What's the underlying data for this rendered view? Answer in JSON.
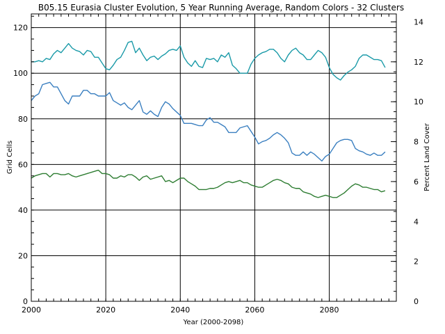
{
  "chart_data": {
    "type": "line",
    "title": "B05.15 Eurasia Cluster Evolution, 5 Year Running Average, Random Colors - 32 Clusters",
    "xlabel": "Year (2000-2098)",
    "ylabel": "Grid Cells",
    "y2label": "Percent Land Cover",
    "xlim": [
      2000,
      2098
    ],
    "ylim": [
      0,
      126
    ],
    "y2lim": [
      0,
      14.4
    ],
    "grid": true,
    "x_ticks": [
      2000,
      2020,
      2040,
      2060,
      2080
    ],
    "y_ticks": [
      0,
      20,
      40,
      60,
      80,
      100,
      120
    ],
    "y2_ticks": [
      0,
      2,
      4,
      6,
      8,
      10,
      12,
      14
    ],
    "series": [
      {
        "color": "#1a9aa8",
        "points": [
          [
            2000,
            105
          ],
          [
            2001,
            105
          ],
          [
            2002,
            105.5
          ],
          [
            2003,
            105
          ],
          [
            2004,
            106.5
          ],
          [
            2005,
            106
          ],
          [
            2006,
            108.5
          ],
          [
            2007,
            110
          ],
          [
            2008,
            109
          ],
          [
            2009,
            111
          ],
          [
            2010,
            113
          ],
          [
            2011,
            111
          ],
          [
            2012,
            110
          ],
          [
            2013,
            109.5
          ],
          [
            2014,
            108
          ],
          [
            2015,
            110
          ],
          [
            2016,
            109.5
          ],
          [
            2017,
            107
          ],
          [
            2018,
            107
          ],
          [
            2019,
            104.5
          ],
          [
            2020,
            102
          ],
          [
            2021,
            101.5
          ],
          [
            2022,
            103.5
          ],
          [
            2023,
            106
          ],
          [
            2024,
            107
          ],
          [
            2025,
            110
          ],
          [
            2026,
            113.5
          ],
          [
            2027,
            114
          ],
          [
            2028,
            109
          ],
          [
            2029,
            111
          ],
          [
            2030,
            108
          ],
          [
            2031,
            105.5
          ],
          [
            2032,
            107
          ],
          [
            2033,
            107.5
          ],
          [
            2034,
            106
          ],
          [
            2035,
            107.5
          ],
          [
            2036,
            108.5
          ],
          [
            2037,
            110
          ],
          [
            2038,
            110.5
          ],
          [
            2039,
            110
          ],
          [
            2040,
            112
          ],
          [
            2041,
            107
          ],
          [
            2042,
            104.5
          ],
          [
            2043,
            103
          ],
          [
            2044,
            105.5
          ],
          [
            2045,
            103
          ],
          [
            2046,
            102.5
          ],
          [
            2047,
            106.5
          ],
          [
            2048,
            106
          ],
          [
            2049,
            106.5
          ],
          [
            2050,
            105
          ],
          [
            2051,
            108
          ],
          [
            2052,
            107
          ],
          [
            2053,
            109
          ],
          [
            2054,
            103.5
          ],
          [
            2055,
            102
          ],
          [
            2056,
            100
          ],
          [
            2057,
            100
          ],
          [
            2058,
            100
          ],
          [
            2059,
            104
          ],
          [
            2060,
            106.5
          ],
          [
            2061,
            108
          ],
          [
            2062,
            109
          ],
          [
            2063,
            109.5
          ],
          [
            2064,
            110.5
          ],
          [
            2065,
            110.5
          ],
          [
            2066,
            109
          ],
          [
            2067,
            106.5
          ],
          [
            2068,
            105
          ],
          [
            2069,
            108
          ],
          [
            2070,
            110
          ],
          [
            2071,
            111
          ],
          [
            2072,
            109
          ],
          [
            2073,
            108
          ],
          [
            2074,
            106
          ],
          [
            2075,
            106
          ],
          [
            2076,
            108
          ],
          [
            2077,
            110
          ],
          [
            2078,
            109
          ],
          [
            2079,
            107
          ],
          [
            2080,
            102.5
          ],
          [
            2081,
            99.5
          ],
          [
            2082,
            98
          ],
          [
            2083,
            97
          ],
          [
            2084,
            99
          ],
          [
            2085,
            100.5
          ],
          [
            2086,
            101.5
          ],
          [
            2087,
            103
          ],
          [
            2088,
            106.5
          ],
          [
            2089,
            108
          ],
          [
            2090,
            108
          ],
          [
            2091,
            107
          ],
          [
            2092,
            106
          ],
          [
            2093,
            106
          ],
          [
            2094,
            105.5
          ],
          [
            2095,
            102.5
          ]
        ]
      },
      {
        "color": "#3a7fc0",
        "points": [
          [
            2000,
            88
          ],
          [
            2001,
            90
          ],
          [
            2002,
            91
          ],
          [
            2003,
            95
          ],
          [
            2004,
            95.5
          ],
          [
            2005,
            96
          ],
          [
            2006,
            94
          ],
          [
            2007,
            94
          ],
          [
            2008,
            91
          ],
          [
            2009,
            88
          ],
          [
            2010,
            86.5
          ],
          [
            2011,
            90
          ],
          [
            2012,
            90
          ],
          [
            2013,
            90
          ],
          [
            2014,
            92.5
          ],
          [
            2015,
            92.5
          ],
          [
            2016,
            91
          ],
          [
            2017,
            91
          ],
          [
            2018,
            90
          ],
          [
            2019,
            90
          ],
          [
            2020,
            90
          ],
          [
            2021,
            91.5
          ],
          [
            2022,
            88
          ],
          [
            2023,
            87
          ],
          [
            2024,
            86
          ],
          [
            2025,
            87
          ],
          [
            2026,
            85
          ],
          [
            2027,
            84
          ],
          [
            2028,
            86
          ],
          [
            2029,
            88
          ],
          [
            2030,
            83
          ],
          [
            2031,
            82
          ],
          [
            2032,
            83.5
          ],
          [
            2033,
            82
          ],
          [
            2034,
            81
          ],
          [
            2035,
            85
          ],
          [
            2036,
            87.5
          ],
          [
            2037,
            86.5
          ],
          [
            2038,
            84.5
          ],
          [
            2039,
            83
          ],
          [
            2040,
            81.5
          ],
          [
            2041,
            78
          ],
          [
            2042,
            78
          ],
          [
            2043,
            78
          ],
          [
            2044,
            77.5
          ],
          [
            2045,
            77
          ],
          [
            2046,
            77
          ],
          [
            2047,
            79.5
          ],
          [
            2048,
            80.5
          ],
          [
            2049,
            78.5
          ],
          [
            2050,
            78.5
          ],
          [
            2051,
            77.5
          ],
          [
            2052,
            76.5
          ],
          [
            2053,
            74
          ],
          [
            2054,
            74
          ],
          [
            2055,
            74
          ],
          [
            2056,
            76
          ],
          [
            2057,
            76.5
          ],
          [
            2058,
            77
          ],
          [
            2059,
            74.5
          ],
          [
            2060,
            72
          ],
          [
            2061,
            69
          ],
          [
            2062,
            70
          ],
          [
            2063,
            70.5
          ],
          [
            2064,
            71.5
          ],
          [
            2065,
            73
          ],
          [
            2066,
            74
          ],
          [
            2067,
            73
          ],
          [
            2068,
            71.5
          ],
          [
            2069,
            69.5
          ],
          [
            2070,
            65
          ],
          [
            2071,
            64
          ],
          [
            2072,
            64
          ],
          [
            2073,
            65.5
          ],
          [
            2074,
            64
          ],
          [
            2075,
            65.5
          ],
          [
            2076,
            64.5
          ],
          [
            2077,
            63
          ],
          [
            2078,
            61.5
          ],
          [
            2079,
            63.5
          ],
          [
            2080,
            64.5
          ],
          [
            2081,
            67
          ],
          [
            2082,
            69.5
          ],
          [
            2083,
            70.5
          ],
          [
            2084,
            71
          ],
          [
            2085,
            71
          ],
          [
            2086,
            70.5
          ],
          [
            2087,
            67
          ],
          [
            2088,
            66
          ],
          [
            2089,
            65.5
          ],
          [
            2090,
            64.5
          ],
          [
            2091,
            64
          ],
          [
            2092,
            65
          ],
          [
            2093,
            64
          ],
          [
            2094,
            64
          ],
          [
            2095,
            65.5
          ]
        ]
      },
      {
        "color": "#2e7d32",
        "points": [
          [
            2000,
            54
          ],
          [
            2001,
            55
          ],
          [
            2002,
            55.5
          ],
          [
            2003,
            56
          ],
          [
            2004,
            56
          ],
          [
            2005,
            54.5
          ],
          [
            2006,
            56
          ],
          [
            2007,
            56
          ],
          [
            2008,
            55.5
          ],
          [
            2009,
            55.5
          ],
          [
            2010,
            56
          ],
          [
            2011,
            55
          ],
          [
            2012,
            54.5
          ],
          [
            2013,
            55
          ],
          [
            2014,
            55.5
          ],
          [
            2015,
            56
          ],
          [
            2016,
            56.5
          ],
          [
            2017,
            57
          ],
          [
            2018,
            57.5
          ],
          [
            2019,
            56
          ],
          [
            2020,
            56
          ],
          [
            2021,
            55.5
          ],
          [
            2022,
            54
          ],
          [
            2023,
            54
          ],
          [
            2024,
            55
          ],
          [
            2025,
            54.5
          ],
          [
            2026,
            55.5
          ],
          [
            2027,
            55.5
          ],
          [
            2028,
            54.5
          ],
          [
            2029,
            53
          ],
          [
            2030,
            54.5
          ],
          [
            2031,
            55
          ],
          [
            2032,
            53.5
          ],
          [
            2033,
            54
          ],
          [
            2034,
            54.5
          ],
          [
            2035,
            55
          ],
          [
            2036,
            52.5
          ],
          [
            2037,
            53
          ],
          [
            2038,
            52
          ],
          [
            2039,
            53
          ],
          [
            2040,
            54
          ],
          [
            2041,
            54
          ],
          [
            2042,
            52.5
          ],
          [
            2043,
            51.5
          ],
          [
            2044,
            50.5
          ],
          [
            2045,
            49
          ],
          [
            2046,
            49
          ],
          [
            2047,
            49
          ],
          [
            2048,
            49.5
          ],
          [
            2049,
            49.5
          ],
          [
            2050,
            50
          ],
          [
            2051,
            51
          ],
          [
            2052,
            52
          ],
          [
            2053,
            52.5
          ],
          [
            2054,
            52
          ],
          [
            2055,
            52.5
          ],
          [
            2056,
            53
          ],
          [
            2057,
            52
          ],
          [
            2058,
            52
          ],
          [
            2059,
            51
          ],
          [
            2060,
            50.5
          ],
          [
            2061,
            50
          ],
          [
            2062,
            50
          ],
          [
            2063,
            51
          ],
          [
            2064,
            52
          ],
          [
            2065,
            53
          ],
          [
            2066,
            53.5
          ],
          [
            2067,
            53
          ],
          [
            2068,
            52
          ],
          [
            2069,
            51.5
          ],
          [
            2070,
            50
          ],
          [
            2071,
            49.5
          ],
          [
            2072,
            49.5
          ],
          [
            2073,
            48
          ],
          [
            2074,
            47.5
          ],
          [
            2075,
            47
          ],
          [
            2076,
            46
          ],
          [
            2077,
            45.5
          ],
          [
            2078,
            46
          ],
          [
            2079,
            46.5
          ],
          [
            2080,
            46
          ],
          [
            2081,
            45.5
          ],
          [
            2082,
            45.5
          ],
          [
            2083,
            46.5
          ],
          [
            2084,
            47.5
          ],
          [
            2085,
            49
          ],
          [
            2086,
            50.5
          ],
          [
            2087,
            51.5
          ],
          [
            2088,
            51
          ],
          [
            2089,
            50
          ],
          [
            2090,
            50
          ],
          [
            2091,
            49.5
          ],
          [
            2092,
            49
          ],
          [
            2093,
            49
          ],
          [
            2094,
            48
          ],
          [
            2095,
            48.5
          ]
        ]
      }
    ]
  }
}
